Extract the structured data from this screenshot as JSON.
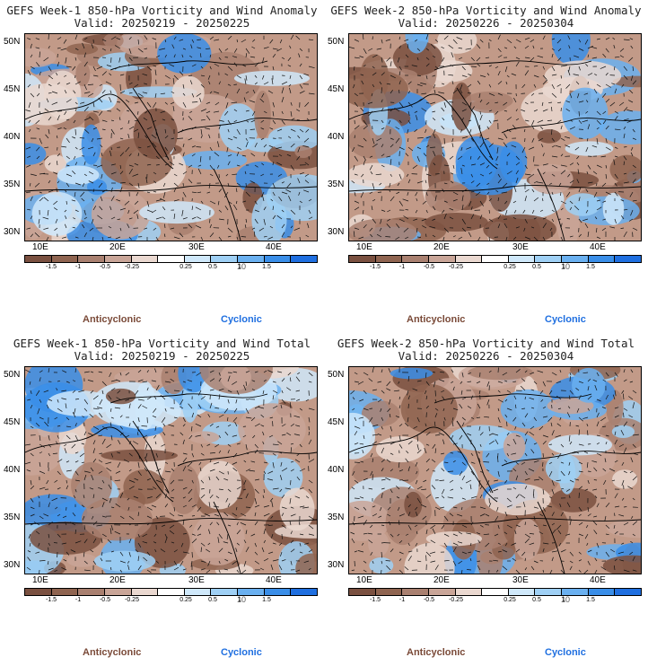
{
  "panels": [
    {
      "title": "GEFS Week-1 850-hPa Vorticity and Wind Anomaly",
      "valid": "Valid: 20250219 - 20250225",
      "anticyclonic": "Anticyclonic",
      "cyclonic": "Cyclonic"
    },
    {
      "title": "GEFS Week-2 850-hPa Vorticity and Wind Anomaly",
      "valid": "Valid: 20250226 - 20250304",
      "anticyclonic": "Anticyclonic",
      "cyclonic": "Cyclonic"
    },
    {
      "title": "GEFS Week-1 850-hPa Vorticity and Wind Total",
      "valid": "Valid: 20250219 - 20250225",
      "anticyclonic": "Anticyclonic",
      "cyclonic": "Cyclonic"
    },
    {
      "title": "GEFS Week-2 850-hPa Vorticity and Wind Total",
      "valid": "Valid: 20250226 - 20250304",
      "anticyclonic": "Anticyclonic",
      "cyclonic": "Cyclonic"
    }
  ],
  "lat_labels": [
    "50N",
    "45N",
    "40N",
    "35N",
    "30N"
  ],
  "lon_labels": [
    "10E",
    "20E",
    "30E",
    "40E"
  ],
  "colorbar": {
    "labels": [
      "-1.5",
      "-1",
      "-0.5",
      "-0.25",
      "0.25",
      "0.5",
      "1",
      "1.5"
    ],
    "unit": "10",
    "colors": [
      "#7a5040",
      "#8f6450",
      "#a98070",
      "#c9a598",
      "#ead8d0",
      "#ffffff",
      "#cfe8fa",
      "#9fd0f5",
      "#6ab0f0",
      "#3a8ee8",
      "#1f6fe0"
    ]
  }
}
